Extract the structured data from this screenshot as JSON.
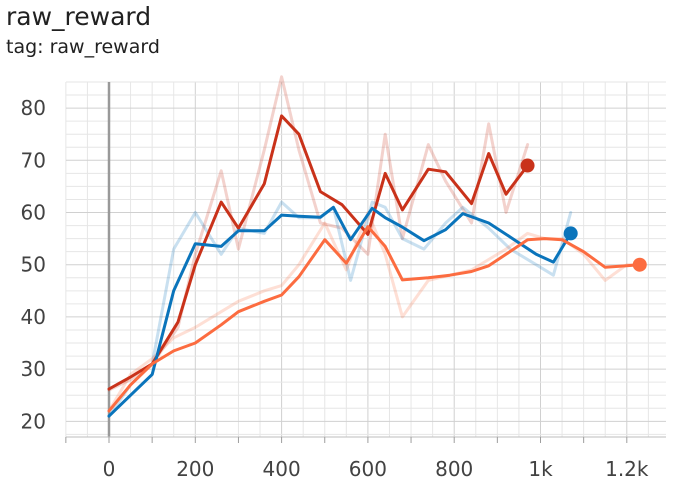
{
  "header": {
    "title": "raw_reward",
    "subtitle": "tag: raw_reward"
  },
  "chart_data": {
    "type": "line",
    "title": "raw_reward",
    "subtitle": "tag: raw_reward",
    "xlabel": "",
    "ylabel": "",
    "xlim": [
      -100,
      1300
    ],
    "ylim": [
      17,
      85
    ],
    "grid": true,
    "x_ticks": [
      0,
      200,
      400,
      600,
      800,
      1000,
      1200
    ],
    "x_tick_labels": [
      "0",
      "200",
      "400",
      "600",
      "800",
      "1k",
      "1.2k"
    ],
    "y_ticks": [
      20,
      30,
      40,
      50,
      60,
      70,
      80
    ],
    "y_tick_labels": [
      "20",
      "30",
      "40",
      "50",
      "60",
      "70",
      "80"
    ],
    "series": [
      {
        "color": "#c9321a",
        "x": [
          0,
          50,
          100,
          160,
          200,
          260,
          300,
          360,
          400,
          440,
          490,
          540,
          600,
          640,
          680,
          740,
          780,
          840,
          880,
          920,
          970
        ],
        "raw": [
          26,
          28,
          31,
          38,
          52,
          68,
          53,
          72,
          86,
          72,
          58,
          57,
          52,
          75,
          55,
          73,
          66,
          58,
          77,
          60,
          73
        ],
        "smoothed": [
          26.2,
          28.5,
          31,
          39,
          50,
          62,
          57,
          65.5,
          78.5,
          75,
          64,
          61.5,
          55.8,
          67.5,
          60.5,
          68.3,
          67.8,
          61.7,
          71.3,
          63.5,
          69
        ]
      },
      {
        "color": "#0a74bb",
        "x": [
          0,
          50,
          100,
          150,
          200,
          260,
          300,
          360,
          400,
          440,
          490,
          520,
          560,
          610,
          640,
          680,
          730,
          780,
          820,
          880,
          930,
          990,
          1030,
          1070
        ],
        "raw": [
          21,
          27,
          31,
          53,
          60,
          52,
          57,
          56,
          62,
          59,
          59,
          61,
          47,
          62,
          61,
          55,
          53,
          58,
          61,
          57,
          53,
          50,
          48,
          60
        ],
        "smoothed": [
          21,
          25,
          29,
          45,
          54,
          53.5,
          56.5,
          56.5,
          59.5,
          59.3,
          59.1,
          61,
          54.8,
          60.8,
          59,
          57.2,
          54.6,
          56.7,
          59.8,
          58,
          55.3,
          52,
          50.5,
          56
        ]
      },
      {
        "color": "#fc6c40",
        "x": [
          0,
          50,
          100,
          150,
          200,
          260,
          300,
          360,
          400,
          440,
          500,
          550,
          600,
          640,
          680,
          740,
          790,
          840,
          880,
          920,
          970,
          1010,
          1050,
          1100,
          1150,
          1200,
          1230
        ],
        "raw": [
          22,
          29,
          32,
          36,
          38,
          41,
          43,
          45,
          46,
          50,
          58,
          49,
          60,
          52,
          40,
          47,
          48,
          49,
          51,
          53,
          56,
          55,
          55,
          52,
          47,
          50,
          50
        ],
        "smoothed": [
          22,
          27,
          31,
          33.5,
          35,
          38.5,
          41,
          43,
          44.2,
          47.7,
          54.8,
          50.3,
          57.3,
          53.5,
          47.1,
          47.5,
          48,
          48.7,
          49.8,
          52,
          54.8,
          55,
          54.8,
          52.5,
          49.5,
          49.8,
          50
        ]
      }
    ]
  }
}
